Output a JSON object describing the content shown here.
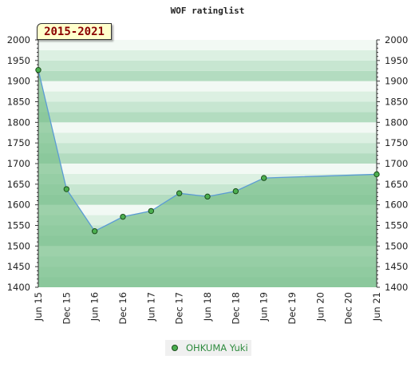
{
  "chart_data": {
    "type": "area",
    "title": "WOF ratinglist",
    "period": "2015-2021",
    "categories": [
      "Jun 15",
      "Dec 15",
      "Jun 16",
      "Dec 16",
      "Jun 17",
      "Dec 17",
      "Jun 18",
      "Dec 18",
      "Jun 19",
      "Dec 19",
      "Jun 20",
      "Dec 20",
      "Jun 21"
    ],
    "series": [
      {
        "name": "OHKUMA Yuki",
        "points": [
          {
            "x": "Jun 15",
            "y": 1927
          },
          {
            "x": "Dec 15",
            "y": 1638
          },
          {
            "x": "Jun 16",
            "y": 1536
          },
          {
            "x": "Dec 16",
            "y": 1571
          },
          {
            "x": "Jun 17",
            "y": 1585
          },
          {
            "x": "Dec 17",
            "y": 1628
          },
          {
            "x": "Jun 18",
            "y": 1620
          },
          {
            "x": "Dec 18",
            "y": 1633
          },
          {
            "x": "Jun 19",
            "y": 1665
          },
          {
            "x": "Jun 21",
            "y": 1674
          }
        ]
      }
    ],
    "ylim": [
      1400,
      2000
    ],
    "yticks": [
      1400,
      1450,
      1500,
      1550,
      1600,
      1650,
      1700,
      1750,
      1800,
      1850,
      1900,
      1950,
      2000
    ],
    "grid": true,
    "legend": "bottom-center",
    "colors": {
      "line": "#5b9bd5",
      "area": "#7cc08e",
      "marker": "#4caf50",
      "band_dark": "#b3dcc0",
      "band_light": "#f2f9f4",
      "legend_text": "#2e8b3e"
    }
  }
}
